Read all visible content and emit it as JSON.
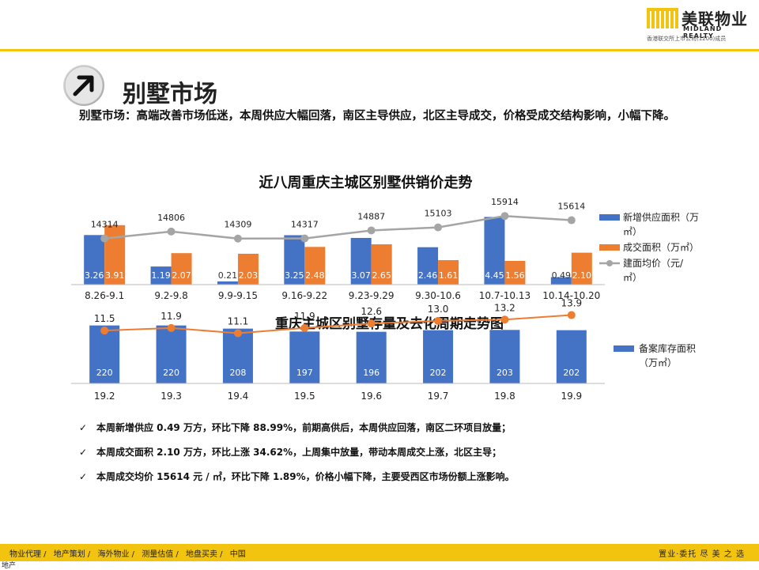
{
  "header": {
    "logo_cn": "美联物业",
    "logo_en": "MIDLAND REALTY",
    "logo_sub": "香港联交所上市公司(1200)成员"
  },
  "page_title": "别墅市场",
  "summary": "别墅市场：高端改善市场低迷，本周供应大幅回落，南区主导供应，北区主导成交，价格受成交结构影响，小幅下降。",
  "chart_data": [
    {
      "type": "bar",
      "title": "近八周重庆主城区别墅供销价走势",
      "categories": [
        "8.26-9.1",
        "9.2-9.8",
        "9.9-9.15",
        "9.16-9.22",
        "9.23-9.29",
        "9.30-10.6",
        "10.7-10.13",
        "10.14-10.20"
      ],
      "series": [
        {
          "name": "新增供应面积（万㎡）",
          "kind": "bar",
          "color": "#4472c4",
          "values": [
            3.26,
            1.19,
            0.21,
            3.25,
            3.07,
            2.46,
            4.45,
            0.49
          ]
        },
        {
          "name": "成交面积（万㎡）",
          "kind": "bar",
          "color": "#ed7d31",
          "values": [
            3.91,
            2.07,
            2.03,
            2.48,
            2.65,
            1.61,
            1.56,
            2.1
          ]
        },
        {
          "name": "建面均价（元/㎡）",
          "kind": "line",
          "color": "#a5a5a5",
          "values": [
            14314,
            14806,
            14309,
            14317,
            14887,
            15103,
            15914,
            15614
          ]
        }
      ],
      "legend": "right"
    },
    {
      "type": "bar",
      "title": "重庆主城区别墅存量及去化周期走势图",
      "categories": [
        "19.2",
        "19.3",
        "19.4",
        "19.5",
        "19.6",
        "19.7",
        "19.8",
        "19.9"
      ],
      "series": [
        {
          "name": "备案库存面积（万㎡）",
          "kind": "bar",
          "color": "#4472c4",
          "values": [
            220,
            220,
            208,
            197,
            196,
            202,
            203,
            202
          ]
        },
        {
          "kind": "line",
          "color": "#ed7d31",
          "values": [
            11.5,
            11.9,
            11.1,
            11.9,
            12.6,
            13.0,
            13.2,
            13.9
          ]
        }
      ],
      "legend": "right"
    }
  ],
  "bullets": [
    "本周新增供应 0.49 万方，环比下降 88.99%，前期高供后，本周供应回落，南区二环项目放量；",
    "本周成交面积 2.10 万方，环比上涨 34.62%，上周集中放量，带动本周成交上涨，北区主导；",
    "本周成交均价 15614 元 / ㎡，环比下降 1.89%，价格小幅下降，主要受西区市场份额上涨影响。"
  ],
  "check_mark": "✓",
  "footer": {
    "nav": [
      "物业代理 /",
      "地产策划 /",
      "海外物业 /",
      "测量估值 /",
      "地盘买卖 /",
      "中国"
    ],
    "slogan": "置业·委托 尽 美 之 选",
    "tag": "地产"
  }
}
